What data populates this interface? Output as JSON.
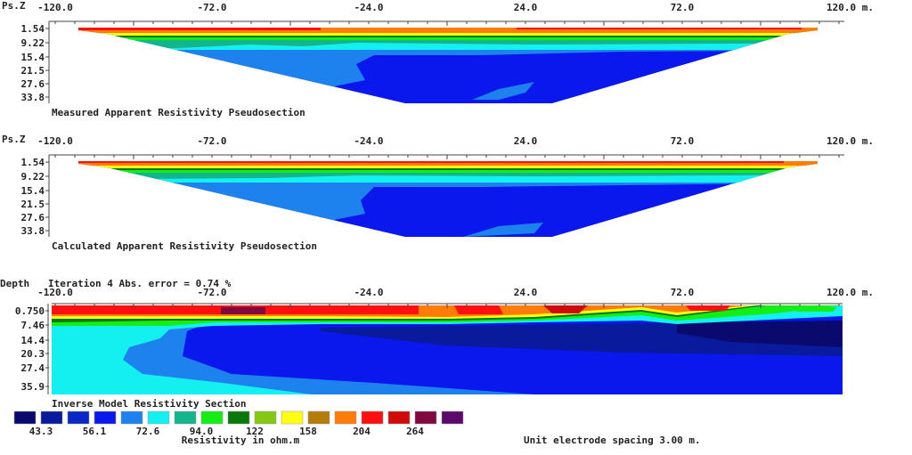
{
  "chart_data": [
    {
      "type": "heatmap",
      "title": "Measured Apparent Resistivity Pseudosection",
      "ylabel": "Ps.Z",
      "x_ticks": [
        "-120.0",
        "-72.0",
        "-24.0",
        "24.0",
        "72.0",
        "120.0 m."
      ],
      "y_ticks": [
        "1.54",
        "9.22",
        "15.4",
        "21.5",
        "27.6",
        "33.8"
      ],
      "xlim": [
        -120,
        120
      ],
      "ylim": [
        33.8,
        1.54
      ]
    },
    {
      "type": "heatmap",
      "title": "Calculated Apparent Resistivity Pseudosection",
      "ylabel": "Ps.Z",
      "x_ticks": [
        "-120.0",
        "-72.0",
        "-24.0",
        "24.0",
        "72.0",
        "120.0 m."
      ],
      "y_ticks": [
        "1.54",
        "9.22",
        "15.4",
        "21.5",
        "27.6",
        "33.8"
      ],
      "xlim": [
        -120,
        120
      ],
      "ylim": [
        33.8,
        1.54
      ]
    },
    {
      "type": "heatmap",
      "title": "Inverse Model Resistivity Section",
      "ylabel": "Depth",
      "subtitle": "Iteration 4 Abs. error = 0.74 %",
      "x_ticks": [
        "-120.0",
        "-72.0",
        "-24.0",
        "24.0",
        "72.0",
        "120.0 m."
      ],
      "y_ticks": [
        "0.750",
        "7.46",
        "14.4",
        "20.3",
        "27.4",
        "35.9"
      ],
      "xlim": [
        -120,
        120
      ],
      "ylim": [
        35.9,
        0.75
      ]
    }
  ],
  "legend": {
    "colors": [
      "#0a0a6e",
      "#0a1a9c",
      "#0a28c4",
      "#0a18ee",
      "#1e82ee",
      "#14f0f0",
      "#14b48c",
      "#14ee14",
      "#0a780a",
      "#84c814",
      "#ffff14",
      "#b47c0a",
      "#ff7c0a",
      "#ff1010",
      "#d00a0a",
      "#800a40",
      "#5a0a6a"
    ],
    "labels": [
      "43.3",
      "56.1",
      "72.6",
      "94.0",
      "122",
      "158",
      "204",
      "264"
    ],
    "unit_label": "Resistivity in ohm.m"
  },
  "footer": {
    "electrode_spacing": "Unit electrode spacing 3.00 m."
  }
}
